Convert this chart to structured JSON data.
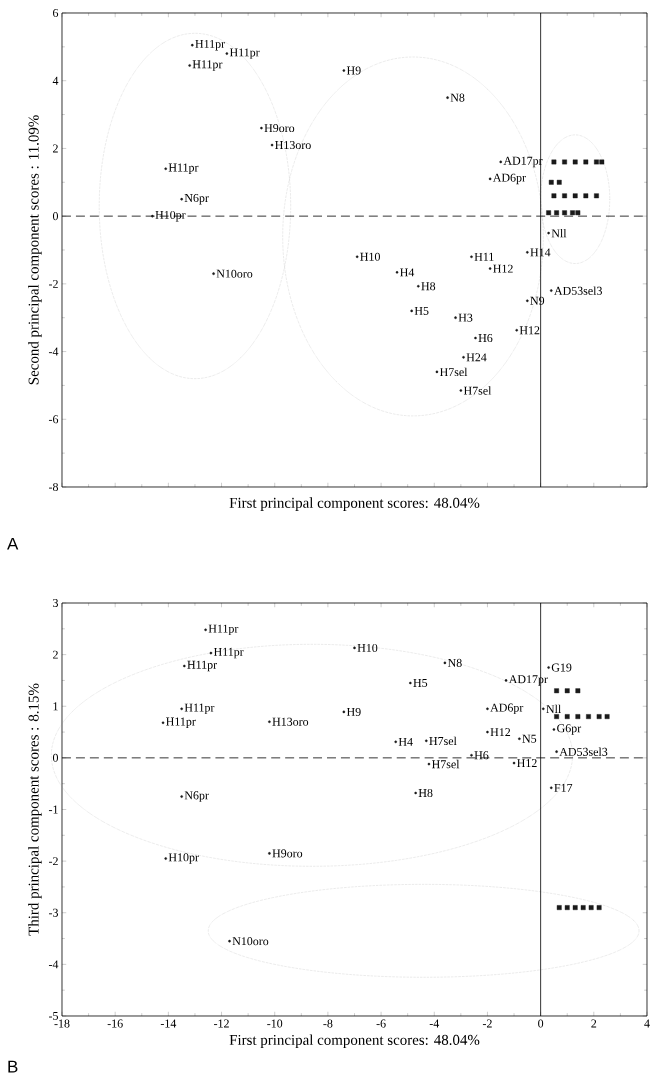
{
  "chart_data": [
    {
      "type": "scatter",
      "xlabel": "First principal component scores: 48.04%",
      "ylabel": "Second principal component scores : 11.09%",
      "xlim": [
        -18,
        4
      ],
      "ylim": [
        -8,
        6
      ],
      "xticks": [
        -18,
        -16,
        -14,
        -12,
        -10,
        -8,
        -6,
        -4,
        -2,
        0,
        2,
        4
      ],
      "yticks": [
        -8,
        -6,
        -4,
        -2,
        0,
        2,
        4,
        6
      ],
      "tick_labels": "y",
      "marker": "square",
      "ref_lines": [
        {
          "axis": "y",
          "value": 0,
          "line_style": "dashed"
        },
        {
          "axis": "x",
          "value": 0,
          "line_style": "solid"
        }
      ],
      "series": [
        {
          "color": "#1a1a1a",
          "x": [
            0.5,
            0.9,
            1.3,
            1.7,
            2.1,
            2.3,
            0.5,
            0.9,
            1.3,
            1.7,
            2.1,
            0.3,
            0.6,
            0.9,
            1.2,
            1.4,
            0.4,
            0.7
          ],
          "values": [
            1.6,
            1.6,
            1.6,
            1.6,
            1.6,
            1.6,
            0.6,
            0.6,
            0.6,
            0.6,
            0.6,
            0.1,
            0.1,
            0.1,
            0.1,
            0.1,
            1.0,
            1.0
          ]
        },
        {
          "color": "#1a1a1a",
          "marker": "circle",
          "x": [
            -13.1,
            -11.8,
            -13.2,
            -7.4,
            -10.5,
            -10.1,
            -14.1,
            -13.5,
            -14.6,
            -12.3,
            -6.9,
            -3.5,
            -1.5,
            -1.9,
            0.3,
            -0.5,
            -2.6,
            -1.9,
            -5.4,
            -4.6,
            0.4,
            -0.5,
            -4.85,
            -3.2,
            -0.9,
            -2.45,
            -2.9,
            -3.9,
            -3.0
          ],
          "values": [
            5.05,
            4.8,
            4.45,
            4.3,
            2.6,
            2.1,
            1.4,
            0.5,
            0.0,
            -1.7,
            -1.2,
            3.5,
            1.6,
            1.1,
            -0.5,
            -1.07,
            -1.2,
            -1.55,
            -1.66,
            -2.07,
            -2.2,
            -2.5,
            -2.8,
            -3.0,
            -3.37,
            -3.6,
            -4.17,
            -4.6,
            -5.15
          ]
        }
      ],
      "annotations": [
        "A",
        {
          "text": "H11pr",
          "x": -13.1,
          "y": 5.05
        },
        {
          "text": "H11pr",
          "x": -11.8,
          "y": 4.8
        },
        {
          "text": "H11pr",
          "x": -13.2,
          "y": 4.45
        },
        {
          "text": "H9",
          "x": -7.4,
          "y": 4.3
        },
        {
          "text": "H9oro",
          "x": -10.5,
          "y": 2.6
        },
        {
          "text": "H13oro",
          "x": -10.1,
          "y": 2.1
        },
        {
          "text": "H11pr",
          "x": -14.1,
          "y": 1.4
        },
        {
          "text": "N6pr",
          "x": -13.5,
          "y": 0.5
        },
        {
          "text": "H10pr",
          "x": -14.6,
          "y": 0.0
        },
        {
          "text": "N10oro",
          "x": -12.3,
          "y": -1.7
        },
        {
          "text": "H10",
          "x": -6.9,
          "y": -1.2
        },
        {
          "text": "N8",
          "x": -3.5,
          "y": 3.5
        },
        {
          "text": "AD17pr",
          "x": -1.5,
          "y": 1.6
        },
        {
          "text": "AD6pr",
          "x": -1.9,
          "y": 1.1
        },
        {
          "text": "Nll",
          "x": 0.3,
          "y": -0.5
        },
        {
          "text": "H14",
          "x": -0.5,
          "y": -1.07
        },
        {
          "text": "H11",
          "x": -2.6,
          "y": -1.2
        },
        {
          "text": "H12",
          "x": -1.9,
          "y": -1.55
        },
        {
          "text": "H4",
          "x": -5.4,
          "y": -1.66
        },
        {
          "text": "H8",
          "x": -4.6,
          "y": -2.07
        },
        {
          "text": "AD53sel3",
          "x": 0.4,
          "y": -2.2
        },
        {
          "text": "N9",
          "x": -0.5,
          "y": -2.5
        },
        {
          "text": "H5",
          "x": -4.85,
          "y": -2.8
        },
        {
          "text": "H3",
          "x": -3.2,
          "y": -3.0
        },
        {
          "text": "H12",
          "x": -0.9,
          "y": -3.37
        },
        {
          "text": "H6",
          "x": -2.45,
          "y": -3.6
        },
        {
          "text": "H24",
          "x": -2.9,
          "y": -4.17
        },
        {
          "text": "H7sel",
          "x": -3.9,
          "y": -4.6
        },
        {
          "text": "H7sel",
          "x": -3.0,
          "y": -5.15
        }
      ]
    },
    {
      "type": "scatter",
      "xlabel": "First principal component scores: 48.04%",
      "ylabel": "Third principal component scores :  8.15%",
      "xlim": [
        -18,
        4
      ],
      "ylim": [
        -5,
        3
      ],
      "xticks": [
        -18,
        -16,
        -14,
        -12,
        -10,
        -8,
        -6,
        -4,
        -2,
        0,
        2,
        4
      ],
      "yticks": [
        -5,
        -4,
        -3,
        -2,
        -1,
        0,
        1,
        2,
        3
      ],
      "marker": "square",
      "ref_lines": [
        {
          "axis": "y",
          "value": 0,
          "line_style": "dashed"
        },
        {
          "axis": "x",
          "value": 0,
          "line_style": "solid"
        }
      ],
      "series": [
        {
          "color": "#1a1a1a",
          "x": [
            0.6,
            1.0,
            1.4,
            0.6,
            1.0,
            1.4,
            1.8,
            2.2,
            2.5,
            0.7,
            1.0,
            1.3,
            1.6,
            1.9,
            2.2
          ],
          "values": [
            1.3,
            1.3,
            1.3,
            0.8,
            0.8,
            0.8,
            0.8,
            0.8,
            0.8,
            -2.9,
            -2.9,
            -2.9,
            -2.9,
            -2.9,
            -2.9
          ]
        },
        {
          "color": "#1a1a1a",
          "marker": "circle",
          "x": [
            -12.6,
            -12.4,
            -13.4,
            -13.5,
            -14.2,
            -10.2,
            -7.0,
            -7.4,
            -4.9,
            -5.45,
            -13.5,
            -4.7,
            -14.1,
            -10.2,
            -11.7,
            -3.6,
            0.3,
            -1.3,
            -2.0,
            0.1,
            0.5,
            -2.0,
            -0.8,
            0.6,
            -4.3,
            -4.2,
            -2.6,
            -1.0,
            0.4
          ],
          "values": [
            2.48,
            2.03,
            1.78,
            0.95,
            0.68,
            0.7,
            2.13,
            0.89,
            1.45,
            0.31,
            -0.75,
            -0.68,
            -1.95,
            -1.85,
            -3.55,
            1.84,
            1.75,
            1.5,
            0.95,
            0.95,
            0.55,
            0.5,
            0.37,
            0.12,
            0.33,
            -0.12,
            0.05,
            -0.1,
            -0.58
          ]
        }
      ],
      "annotations": [
        "B",
        {
          "text": "H11pr",
          "x": -12.6,
          "y": 2.48
        },
        {
          "text": "H11pr",
          "x": -12.4,
          "y": 2.03
        },
        {
          "text": "H11pr",
          "x": -13.4,
          "y": 1.78
        },
        {
          "text": "H11pr",
          "x": -13.5,
          "y": 0.95
        },
        {
          "text": "H11pr",
          "x": -14.2,
          "y": 0.68
        },
        {
          "text": "H13oro",
          "x": -10.2,
          "y": 0.7
        },
        {
          "text": "H10",
          "x": -7.0,
          "y": 2.13
        },
        {
          "text": "H9",
          "x": -7.4,
          "y": 0.89
        },
        {
          "text": "H5",
          "x": -4.9,
          "y": 1.45
        },
        {
          "text": "H4",
          "x": -5.45,
          "y": 0.31
        },
        {
          "text": "N6pr",
          "x": -13.5,
          "y": -0.75
        },
        {
          "text": "H8",
          "x": -4.7,
          "y": -0.68
        },
        {
          "text": "H10pr",
          "x": -14.1,
          "y": -1.95
        },
        {
          "text": "H9oro",
          "x": -10.2,
          "y": -1.85
        },
        {
          "text": "N10oro",
          "x": -11.7,
          "y": -3.55
        },
        {
          "text": "N8",
          "x": -3.6,
          "y": 1.84
        },
        {
          "text": "G19",
          "x": 0.3,
          "y": 1.75
        },
        {
          "text": "AD17pr",
          "x": -1.3,
          "y": 1.5
        },
        {
          "text": "AD6pr",
          "x": -2.0,
          "y": 0.95
        },
        {
          "text": "Nll",
          "x": 0.1,
          "y": 0.95
        },
        {
          "text": "G6pr",
          "x": 0.5,
          "y": 0.55
        },
        {
          "text": "H12",
          "x": -2.0,
          "y": 0.5
        },
        {
          "text": "N5",
          "x": -0.8,
          "y": 0.37
        },
        {
          "text": "AD53sel3",
          "x": 0.6,
          "y": 0.12
        },
        {
          "text": "H7sel",
          "x": -4.3,
          "y": 0.33
        },
        {
          "text": "H7sel",
          "x": -4.2,
          "y": -0.12
        },
        {
          "text": "H6",
          "x": -2.6,
          "y": 0.05
        },
        {
          "text": "H12",
          "x": -1.0,
          "y": -0.1
        },
        {
          "text": "F17",
          "x": 0.4,
          "y": -0.58
        }
      ]
    }
  ]
}
